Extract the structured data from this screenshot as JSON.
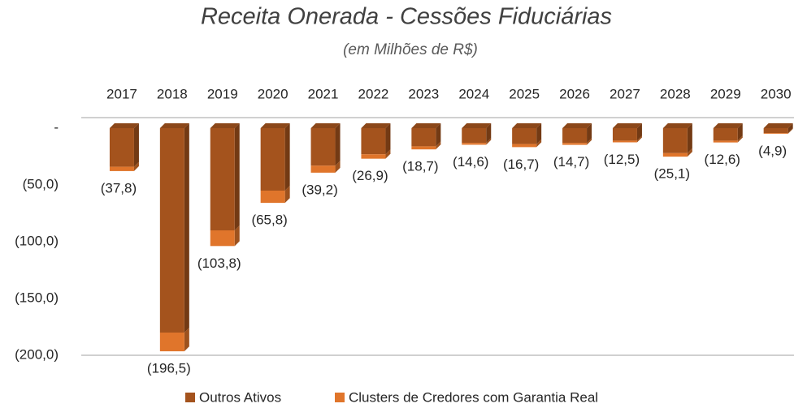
{
  "chart_data": {
    "type": "bar",
    "stacked": true,
    "title": "Receita Onerada - Cessões Fiduciárias",
    "subtitle": "(em Milhões de R$)",
    "categories": [
      "2017",
      "2018",
      "2019",
      "2020",
      "2021",
      "2022",
      "2023",
      "2024",
      "2025",
      "2026",
      "2027",
      "2028",
      "2029",
      "2030"
    ],
    "series": [
      {
        "name": "Outros Ativos",
        "color": "#a4531d",
        "values": [
          -34,
          -180,
          -90,
          -55,
          -33,
          -23,
          -16,
          -13,
          -14,
          -13,
          -11,
          -22,
          -11,
          -4.3
        ]
      },
      {
        "name": "Clusters de Credores com Garantia Real",
        "color": "#e0752b",
        "values": [
          -3.8,
          -16.5,
          -13.8,
          -10.8,
          -6.2,
          -3.9,
          -2.7,
          -1.6,
          -2.7,
          -1.7,
          -1.5,
          -3.1,
          -1.6,
          -0.6
        ]
      }
    ],
    "totals": [
      -37.8,
      -196.5,
      -103.8,
      -65.8,
      -39.2,
      -26.9,
      -18.7,
      -14.6,
      -16.7,
      -14.7,
      -12.5,
      -25.1,
      -12.6,
      -4.9
    ],
    "total_labels": [
      "(37,8)",
      "(196,5)",
      "(103,8)",
      "(65,8)",
      "(39,2)",
      "(26,9)",
      "(18,7)",
      "(14,6)",
      "(16,7)",
      "(14,7)",
      "(12,5)",
      "(25,1)",
      "(12,6)",
      "(4,9)"
    ],
    "ylim": [
      -200,
      0
    ],
    "yticks": [
      {
        "value": 0,
        "label": "-"
      },
      {
        "value": -50,
        "label": "(50,0)"
      },
      {
        "value": -100,
        "label": "(100,0)"
      },
      {
        "value": -150,
        "label": "(150,0)"
      },
      {
        "value": -200,
        "label": "(200,0)"
      }
    ],
    "legend": "bottom"
  }
}
